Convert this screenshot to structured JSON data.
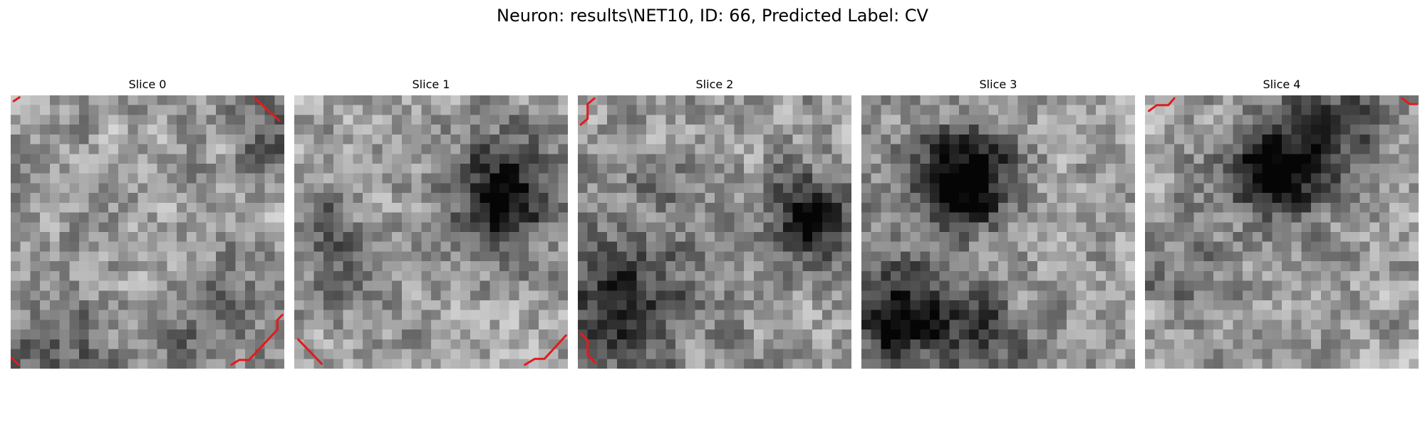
{
  "figure": {
    "title": "Neuron: results\\NET10, ID: 66, Predicted Label: CV"
  },
  "slices": [
    {
      "label": "Slice 0"
    },
    {
      "label": "Slice 1"
    },
    {
      "label": "Slice 2"
    },
    {
      "label": "Slice 3"
    },
    {
      "label": "Slice 4"
    }
  ],
  "colors": {
    "contour": "#e41a1c",
    "colormap": "grayscale"
  }
}
